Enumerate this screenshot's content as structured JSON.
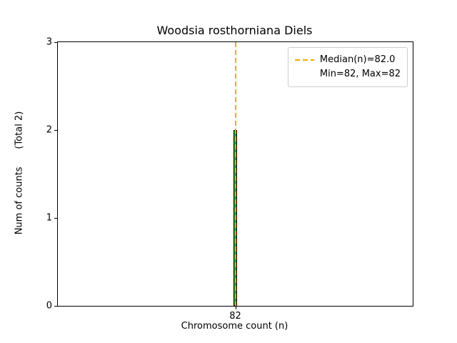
{
  "chart_data": {
    "type": "bar",
    "title": "Woodsia rosthorniana Diels",
    "xlabel": "Chromosome count (n)",
    "ylabel": "Num of counts      (Total 2)",
    "x": [
      82
    ],
    "values": [
      2
    ],
    "total": 2,
    "median": 82.0,
    "min": 82,
    "max": 82,
    "xlim": [
      81.55,
      82.45
    ],
    "ylim": [
      0,
      3
    ],
    "yticks": [
      0,
      1,
      2,
      3
    ],
    "xticks": [
      82
    ],
    "bar_width": 0.01,
    "bar_color": "#2ca02c",
    "bar_edge_color": "#000000",
    "median_color": "#ffa500",
    "grid": false,
    "legend_position": "upper right",
    "legend": [
      "Median(n)=82.0",
      "Min=82, Max=82"
    ]
  }
}
